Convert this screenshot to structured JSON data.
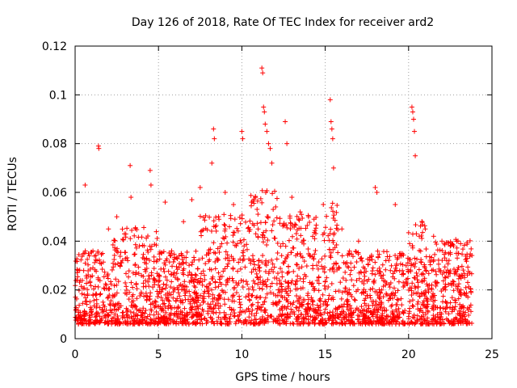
{
  "chart_data": {
    "type": "scatter",
    "title": "Day 126 of 2018, Rate Of TEC Index for receiver ard2",
    "xlabel": "GPS time / hours",
    "ylabel": "ROTI / TECUs",
    "xlim": [
      0,
      25
    ],
    "ylim": [
      0,
      0.12
    ],
    "xticks": [
      0,
      5,
      10,
      15,
      20,
      25
    ],
    "xtick_labels": [
      "0",
      "5",
      "10",
      "15",
      "20",
      "25"
    ],
    "yticks": [
      0,
      0.02,
      0.04,
      0.06,
      0.08,
      0.1,
      0.12
    ],
    "ytick_labels": [
      "0",
      "0.02",
      "0.04",
      "0.06",
      "0.08",
      "0.1",
      "0.12"
    ],
    "grid": true,
    "marker": "+",
    "color": "#ff0000",
    "series": [
      {
        "name": "ard2",
        "density_profile": "dense band of ROTI values between about 0.005 and 0.04 TECU/min across 0-23.8 h, with spikes up to ~0.11 near 11.2 h",
        "x": [
          1.4,
          1.42,
          0.6,
          3.3,
          3.35,
          4.5,
          4.55,
          5.4,
          8.3,
          8.35,
          8.2,
          10.0,
          10.05,
          11.2,
          11.25,
          11.3,
          11.35,
          11.4,
          11.5,
          11.6,
          11.7,
          11.8,
          12.6,
          12.7,
          15.3,
          15.35,
          15.4,
          15.45,
          15.5,
          20.2,
          20.25,
          20.3,
          20.35,
          20.4,
          18.0,
          18.1,
          19.2,
          6.5,
          7.0,
          7.5,
          9.0,
          9.5,
          13.0,
          13.5,
          14.0,
          2.5,
          2.0,
          16.0,
          17.0,
          21.0,
          21.5,
          22.0,
          22.5,
          23.0,
          23.5
        ],
        "y": [
          0.079,
          0.078,
          0.063,
          0.071,
          0.058,
          0.069,
          0.063,
          0.056,
          0.086,
          0.082,
          0.072,
          0.085,
          0.082,
          0.111,
          0.109,
          0.095,
          0.093,
          0.088,
          0.085,
          0.08,
          0.078,
          0.072,
          0.089,
          0.08,
          0.098,
          0.089,
          0.086,
          0.082,
          0.07,
          0.095,
          0.093,
          0.09,
          0.085,
          0.075,
          0.062,
          0.06,
          0.055,
          0.048,
          0.057,
          0.062,
          0.06,
          0.055,
          0.058,
          0.052,
          0.05,
          0.05,
          0.045,
          0.045,
          0.04,
          0.045,
          0.042,
          0.04,
          0.038,
          0.035,
          0.033
        ]
      }
    ]
  }
}
